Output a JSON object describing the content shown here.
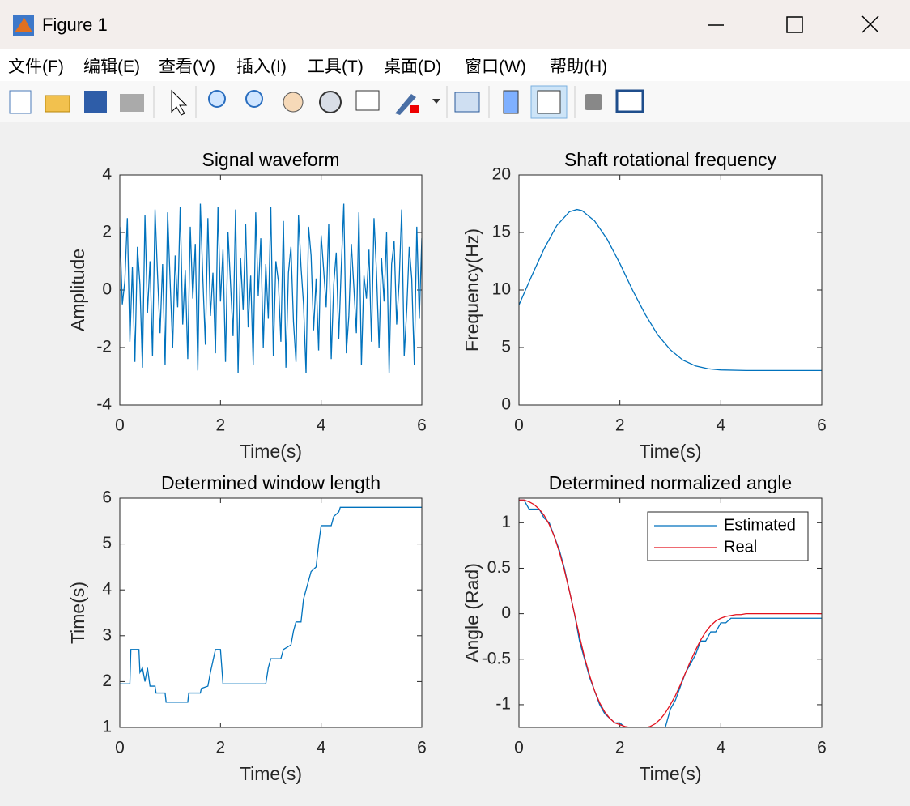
{
  "window": {
    "title": "Figure 1",
    "menu": [
      "文件(F)",
      "编辑(E)",
      "查看(V)",
      "插入(I)",
      "工具(T)",
      "桌面(D)",
      "窗口(W)",
      "帮助(H)"
    ]
  },
  "chart_data": [
    {
      "type": "line",
      "title": "Signal waveform",
      "xlabel": "Time(s)",
      "ylabel": "Amplitude",
      "color": "#0072bd",
      "xlim": [
        0,
        6
      ],
      "xticks": [
        0,
        2,
        4,
        6
      ],
      "ylim": [
        -4,
        4
      ],
      "yticks": [
        -4,
        -2,
        0,
        2,
        4
      ],
      "x": [
        0,
        0.05,
        0.1,
        0.15,
        0.2,
        0.25,
        0.3,
        0.35,
        0.4,
        0.45,
        0.5,
        0.55,
        0.6,
        0.65,
        0.7,
        0.75,
        0.8,
        0.85,
        0.9,
        0.95,
        1,
        1.05,
        1.1,
        1.15,
        1.2,
        1.25,
        1.3,
        1.35,
        1.4,
        1.45,
        1.5,
        1.55,
        1.6,
        1.65,
        1.7,
        1.75,
        1.8,
        1.85,
        1.9,
        1.95,
        2,
        2.05,
        2.1,
        2.15,
        2.2,
        2.25,
        2.3,
        2.35,
        2.4,
        2.45,
        2.5,
        2.55,
        2.6,
        2.65,
        2.7,
        2.75,
        2.8,
        2.85,
        2.9,
        2.95,
        3,
        3.05,
        3.1,
        3.15,
        3.2,
        3.25,
        3.3,
        3.35,
        3.4,
        3.45,
        3.5,
        3.55,
        3.6,
        3.65,
        3.7,
        3.75,
        3.8,
        3.85,
        3.9,
        3.95,
        4,
        4.05,
        4.1,
        4.15,
        4.2,
        4.25,
        4.3,
        4.35,
        4.4,
        4.45,
        4.5,
        4.55,
        4.6,
        4.65,
        4.7,
        4.75,
        4.8,
        4.85,
        4.9,
        4.95,
        5,
        5.05,
        5.1,
        5.15,
        5.2,
        5.25,
        5.3,
        5.35,
        5.4,
        5.45,
        5.5,
        5.55,
        5.6,
        5.65,
        5.7,
        5.75,
        5.8,
        5.85,
        5.9,
        5.95,
        6
      ],
      "values": [
        2.2,
        -0.5,
        0.3,
        2.5,
        -1.8,
        0.8,
        -2.5,
        1.5,
        0.2,
        -2.7,
        2.6,
        -0.8,
        1.0,
        -2.3,
        2.8,
        0.5,
        -1.5,
        0.9,
        -2.6,
        2.7,
        0.3,
        -2.0,
        1.2,
        -0.6,
        2.9,
        -1.2,
        0.7,
        -2.4,
        2.2,
        -0.3,
        1.6,
        -2.8,
        3.0,
        0.4,
        -1.9,
        2.5,
        -0.9,
        0.6,
        -2.2,
        2.9,
        -0.4,
        1.4,
        -2.5,
        2.0,
        0.2,
        -1.6,
        2.8,
        -2.9,
        1.1,
        -0.7,
        2.3,
        -1.3,
        0.5,
        -2.6,
        2.7,
        -0.2,
        1.8,
        -2.0,
        0.9,
        -1.0,
        2.9,
        -2.3,
        1.0,
        0.3,
        -1.8,
        2.4,
        -2.7,
        0.6,
        1.5,
        -1.1,
        -2.5,
        2.6,
        0.8,
        -0.5,
        -2.9,
        2.2,
        1.2,
        -1.4,
        0.4,
        -2.1,
        1.9,
        0.7,
        -0.6,
        2.3,
        -2.4,
        0.2,
        1.3,
        -1.7,
        0.8,
        3.0,
        -2.2,
        -0.9,
        1.6,
        0.1,
        -1.5,
        2.7,
        -2.6,
        0.5,
        -0.3,
        1.4,
        -1.8,
        2.5,
        0.6,
        -2.0,
        1.1,
        -0.4,
        2.0,
        -2.9,
        0.9,
        1.7,
        -1.2,
        0.3,
        2.8,
        -2.3,
        -0.7,
        1.5,
        0.4,
        -2.6,
        2.2,
        -1.0,
        1.8
      ]
    },
    {
      "type": "line",
      "title": "Shaft rotational frequency",
      "xlabel": "Time(s)",
      "ylabel": "Frequency(Hz)",
      "color": "#0072bd",
      "xlim": [
        0,
        6
      ],
      "xticks": [
        0,
        2,
        4,
        6
      ],
      "ylim": [
        0,
        20
      ],
      "yticks": [
        0,
        5,
        10,
        15,
        20
      ],
      "x": [
        0,
        0.25,
        0.5,
        0.75,
        1,
        1.15,
        1.25,
        1.5,
        1.75,
        2,
        2.25,
        2.5,
        2.75,
        3,
        3.25,
        3.5,
        3.75,
        4,
        4.5,
        5,
        5.5,
        6
      ],
      "values": [
        8.7,
        11.2,
        13.6,
        15.6,
        16.8,
        17,
        16.9,
        16,
        14.4,
        12.3,
        10,
        7.9,
        6.1,
        4.8,
        3.9,
        3.4,
        3.15,
        3.05,
        3,
        3,
        3,
        3
      ]
    },
    {
      "type": "line",
      "title": "Determined window length",
      "xlabel": "Time(s)",
      "ylabel": "Time(s)",
      "color": "#0072bd",
      "xlim": [
        0,
        6
      ],
      "xticks": [
        0,
        2,
        4,
        6
      ],
      "ylim": [
        1,
        6
      ],
      "yticks": [
        1,
        2,
        3,
        4,
        5,
        6
      ],
      "x": [
        0,
        0.2,
        0.22,
        0.38,
        0.4,
        0.45,
        0.5,
        0.55,
        0.6,
        0.7,
        0.72,
        0.9,
        0.92,
        1.35,
        1.37,
        1.6,
        1.62,
        1.75,
        1.8,
        1.9,
        2,
        2.05,
        2.9,
        2.95,
        3,
        3.2,
        3.25,
        3.4,
        3.45,
        3.5,
        3.6,
        3.65,
        3.75,
        3.8,
        3.9,
        3.95,
        4,
        4.2,
        4.25,
        4.35,
        4.38,
        6
      ],
      "values": [
        1.95,
        1.95,
        2.7,
        2.7,
        2.2,
        2.3,
        2.0,
        2.3,
        1.9,
        1.9,
        1.75,
        1.75,
        1.55,
        1.55,
        1.75,
        1.75,
        1.85,
        1.9,
        2.2,
        2.7,
        2.7,
        1.95,
        1.95,
        2.3,
        2.5,
        2.5,
        2.7,
        2.8,
        3.1,
        3.3,
        3.3,
        3.8,
        4.2,
        4.4,
        4.5,
        5.0,
        5.4,
        5.4,
        5.6,
        5.7,
        5.8,
        5.8
      ]
    },
    {
      "type": "line",
      "title": "Determined normalized angle",
      "xlabel": "Time(s)",
      "ylabel": "Angle (Rad)",
      "legend": "upper right",
      "xlim": [
        0,
        6
      ],
      "xticks": [
        0,
        2,
        4,
        6
      ],
      "ylim": [
        -1.25,
        1.27
      ],
      "yticks": [
        -1,
        -0.5,
        0,
        0.5,
        1
      ],
      "x": [
        0,
        0.1,
        0.2,
        0.3,
        0.4,
        0.5,
        0.6,
        0.7,
        0.8,
        0.9,
        1,
        1.1,
        1.2,
        1.3,
        1.4,
        1.5,
        1.6,
        1.7,
        1.8,
        1.9,
        2,
        2.1,
        2.2,
        2.3,
        2.4,
        2.5,
        2.6,
        2.7,
        2.8,
        2.9,
        3,
        3.1,
        3.2,
        3.3,
        3.4,
        3.5,
        3.6,
        3.7,
        3.8,
        3.9,
        4,
        4.1,
        4.2,
        4.3,
        4.4,
        4.5,
        4.6,
        4.7,
        4.8,
        4.9,
        5,
        5.1,
        5.2,
        5.3,
        5.4,
        5.5,
        5.6,
        5.7,
        5.8,
        5.9,
        6
      ],
      "series": [
        {
          "name": "Estimated",
          "color": "#0072bd",
          "values": [
            1.25,
            1.25,
            1.15,
            1.15,
            1.15,
            1.05,
            1.0,
            0.85,
            0.7,
            0.5,
            0.25,
            0.0,
            -0.3,
            -0.5,
            -0.7,
            -0.85,
            -1.0,
            -1.1,
            -1.15,
            -1.2,
            -1.2,
            -1.25,
            -1.25,
            -1.25,
            -1.25,
            -1.25,
            -1.25,
            -1.25,
            -1.25,
            -1.25,
            -1.05,
            -0.95,
            -0.8,
            -0.65,
            -0.55,
            -0.45,
            -0.3,
            -0.3,
            -0.2,
            -0.2,
            -0.1,
            -0.1,
            -0.05,
            -0.05,
            -0.05,
            -0.05,
            -0.05,
            -0.05,
            -0.05,
            -0.05,
            -0.05,
            -0.05,
            -0.05,
            -0.05,
            -0.05,
            -0.05,
            -0.05,
            -0.05,
            -0.05,
            -0.05,
            -0.05
          ]
        },
        {
          "name": "Real",
          "color": "#e3101c",
          "values": [
            1.25,
            1.25,
            1.23,
            1.2,
            1.15,
            1.08,
            0.98,
            0.85,
            0.68,
            0.48,
            0.25,
            0.0,
            -0.25,
            -0.48,
            -0.68,
            -0.85,
            -0.98,
            -1.08,
            -1.15,
            -1.2,
            -1.22,
            -1.24,
            -1.25,
            -1.255,
            -1.26,
            -1.255,
            -1.24,
            -1.21,
            -1.16,
            -1.09,
            -1.0,
            -0.9,
            -0.78,
            -0.65,
            -0.52,
            -0.4,
            -0.29,
            -0.2,
            -0.13,
            -0.08,
            -0.05,
            -0.03,
            -0.02,
            -0.01,
            -0.01,
            0,
            0,
            0,
            0,
            0,
            0,
            0,
            0,
            0,
            0,
            0,
            0,
            0,
            0,
            0,
            0
          ]
        }
      ]
    }
  ]
}
